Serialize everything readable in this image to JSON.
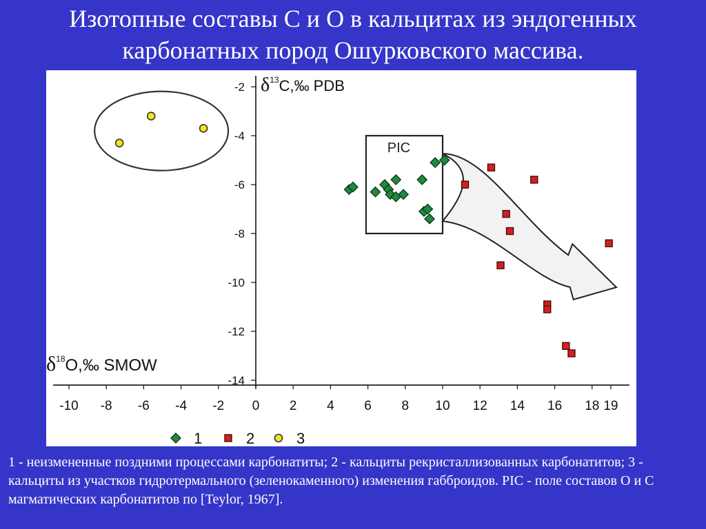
{
  "slide": {
    "title_line1": "Изотопные составы С и О в кальцитах из эндогенных",
    "title_line2": "карбонатных пород Ошурковского массива.",
    "caption": "1 - неизмененные поздними процессами карбонатиты; 2 - кальциты рекристаллизованных карбонатитов; 3 - кальциты из участков гидротермального (зеленокаменного) изменения габброидов. PIC - поле составов O и C магматических карбонатитов по [Teylor, 1967]."
  },
  "chart_data": {
    "type": "scatter",
    "xlabel": {
      "delta": "δ",
      "sup": "18",
      "rest": "O,‰  SMOW"
    },
    "ylabel": {
      "delta": "δ",
      "sup": "13",
      "rest": "C,‰ PDB"
    },
    "xlim": [
      -11,
      19.1
    ],
    "ylim": [
      -14.5,
      -1.5
    ],
    "x_ticks": [
      -10,
      -8,
      -6,
      -4,
      -2,
      0,
      2,
      4,
      6,
      8,
      10,
      12,
      14,
      16,
      18,
      19
    ],
    "y_ticks": [
      -2,
      -4,
      -6,
      -8,
      -10,
      -12,
      -14
    ],
    "pic_box": {
      "label": "PIC",
      "x": [
        5.9,
        10.0
      ],
      "y": [
        -8.0,
        -4.0
      ]
    },
    "series": [
      {
        "name": "1",
        "marker": "diamond",
        "color": "#1f8a3c",
        "points": [
          [
            5.0,
            -6.2
          ],
          [
            5.2,
            -6.1
          ],
          [
            6.4,
            -6.3
          ],
          [
            6.9,
            -6.0
          ],
          [
            7.1,
            -6.2
          ],
          [
            7.2,
            -6.4
          ],
          [
            7.5,
            -5.8
          ],
          [
            7.5,
            -6.5
          ],
          [
            7.9,
            -6.4
          ],
          [
            8.9,
            -5.8
          ],
          [
            9.0,
            -7.1
          ],
          [
            9.2,
            -7.0
          ],
          [
            9.3,
            -7.4
          ],
          [
            9.6,
            -5.1
          ],
          [
            10.1,
            -5.0
          ]
        ]
      },
      {
        "name": "2",
        "marker": "square",
        "color": "#d42020",
        "points": [
          [
            11.2,
            -6.0
          ],
          [
            12.6,
            -5.3
          ],
          [
            13.1,
            -9.3
          ],
          [
            13.4,
            -7.2
          ],
          [
            13.6,
            -7.9
          ],
          [
            14.9,
            -5.8
          ],
          [
            15.6,
            -10.9
          ],
          [
            15.6,
            -11.1
          ],
          [
            16.6,
            -12.6
          ],
          [
            16.9,
            -12.9
          ],
          [
            18.9,
            -8.4
          ]
        ]
      },
      {
        "name": "3",
        "marker": "circle",
        "color": "#f2e51a",
        "points": [
          [
            -7.3,
            -4.3
          ],
          [
            -5.6,
            -3.2
          ],
          [
            -2.8,
            -3.7
          ]
        ]
      }
    ],
    "legend": [
      {
        "marker": "diamond",
        "color": "#1f8a3c",
        "label": "1"
      },
      {
        "marker": "square",
        "color": "#d42020",
        "label": "2"
      },
      {
        "marker": "circle",
        "color": "#f2e51a",
        "label": "3"
      }
    ],
    "legend_position": "bottom-center",
    "grid": false
  }
}
